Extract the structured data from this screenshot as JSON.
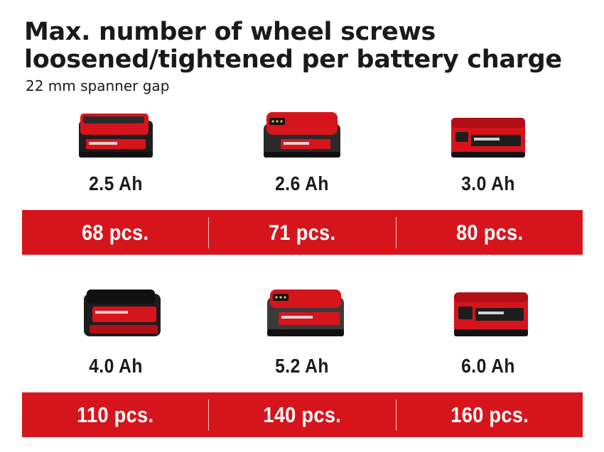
{
  "title": "Max. number of wheel screws loosened/tightened per battery charge",
  "subtitle": "22 mm spanner gap",
  "colors": {
    "band": "#d6141c",
    "battery_red": "#d6141c",
    "battery_dark": "#1d1d1d"
  },
  "rows": [
    {
      "items": [
        {
          "capacity": "2.5 Ah",
          "count": "68 pcs.",
          "icon": "battery-pack-icon"
        },
        {
          "capacity": "2.6 Ah",
          "count": "71 pcs.",
          "icon": "battery-pack-icon"
        },
        {
          "capacity": "3.0 Ah",
          "count": "80 pcs.",
          "icon": "battery-pack-icon"
        }
      ]
    },
    {
      "items": [
        {
          "capacity": "4.0 Ah",
          "count": "110 pcs.",
          "icon": "battery-pack-icon"
        },
        {
          "capacity": "5.2 Ah",
          "count": "140 pcs.",
          "icon": "battery-pack-icon"
        },
        {
          "capacity": "6.0 Ah",
          "count": "160 pcs.",
          "icon": "battery-pack-icon"
        }
      ]
    }
  ]
}
